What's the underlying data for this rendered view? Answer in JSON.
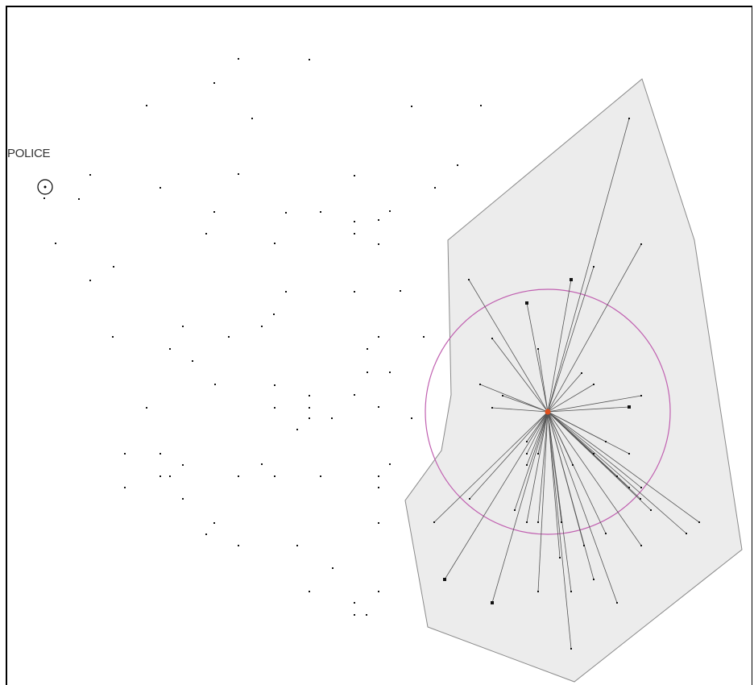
{
  "station": {
    "label": "POLICE",
    "icon": "police-station-icon"
  },
  "colors": {
    "background": "#ffffff",
    "polygon_fill": "#ececec",
    "polygon_stroke": "#8a8a8a",
    "radius_circle": "#c060b0",
    "center_point": "#e0501e",
    "link_line": "#555555",
    "point": "#111111"
  }
}
